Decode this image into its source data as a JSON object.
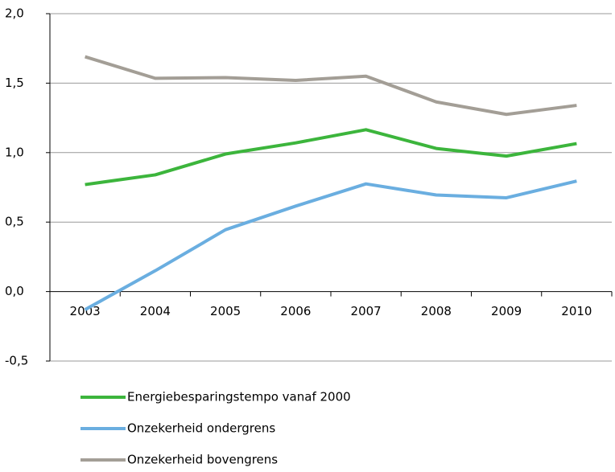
{
  "chart_data": {
    "type": "line",
    "categories": [
      "2003",
      "2004",
      "2005",
      "2006",
      "2007",
      "2008",
      "2009",
      "2010"
    ],
    "series": [
      {
        "name": "Energiebesparingstempo vanaf 2000",
        "color": "#3cb53c",
        "values": [
          0.77,
          0.84,
          0.99,
          1.07,
          1.165,
          1.03,
          0.975,
          1.065
        ]
      },
      {
        "name": "Onzekerheid ondergrens",
        "color": "#6aaee0",
        "values": [
          -0.13,
          0.15,
          0.445,
          0.615,
          0.775,
          0.695,
          0.675,
          0.795
        ]
      },
      {
        "name": "Onzekerheid bovengrens",
        "color": "#a39e96",
        "values": [
          1.69,
          1.535,
          1.54,
          1.52,
          1.55,
          1.365,
          1.275,
          1.34
        ]
      }
    ],
    "ylim": [
      -0.5,
      2.0
    ],
    "yticks": [
      {
        "value": -0.5,
        "label": "-0,5"
      },
      {
        "value": 0,
        "label": "0,0"
      },
      {
        "value": 0.5,
        "label": "0,5"
      },
      {
        "value": 1,
        "label": "1,0"
      },
      {
        "value": 1.5,
        "label": "1,5"
      },
      {
        "value": 2,
        "label": "2,0"
      }
    ],
    "grid": true
  }
}
